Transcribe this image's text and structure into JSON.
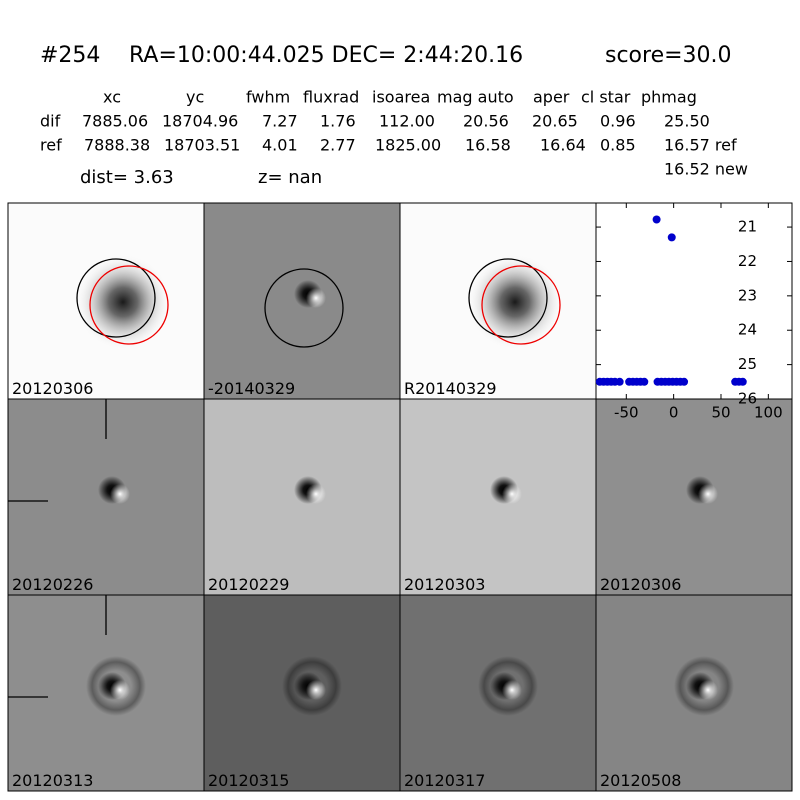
{
  "header": {
    "id": "#254",
    "coords": "RA=10:00:44.025 DEC= 2:44:20.16",
    "score": "score=30.0"
  },
  "table": {
    "columns": [
      "xc",
      "yc",
      "fwhm",
      "fluxrad",
      "isoarea",
      "mag auto",
      "aper",
      "cl star",
      "phmag"
    ],
    "rows": [
      [
        "dif",
        "7885.06",
        "18704.96",
        "7.27",
        "1.76",
        "112.00",
        "20.56",
        "20.65",
        "0.96",
        "25.50"
      ],
      [
        "ref",
        "7888.38",
        "18703.51",
        "4.01",
        "2.77",
        "1825.00",
        "16.58",
        "16.64",
        "0.85",
        "16.57 ref"
      ]
    ],
    "extra": "16.52 new"
  },
  "dist": "dist=  3.63",
  "z": "z=   nan",
  "panels": [
    "20120306",
    "-20140329",
    "R20140329",
    "20120226",
    "20120229",
    "20120303",
    "20120306",
    "20120313",
    "20120315",
    "20120317",
    "20120508"
  ],
  "chart_data": {
    "type": "scatter",
    "color": "#0000cc",
    "x": [
      -18,
      -2,
      -78,
      -74,
      -70,
      -66,
      -62,
      -57,
      -47,
      -43,
      -39,
      -35,
      -31,
      -17,
      -13,
      -9,
      -5,
      -1,
      3,
      7,
      11,
      65,
      69,
      73
    ],
    "values": [
      20.78,
      21.3,
      25.5,
      25.5,
      25.5,
      25.5,
      25.5,
      25.5,
      25.5,
      25.5,
      25.5,
      25.5,
      25.5,
      25.5,
      25.5,
      25.5,
      25.5,
      25.5,
      25.5,
      25.5,
      25.5,
      25.5,
      25.5,
      25.5
    ],
    "xlim": [
      -82,
      125
    ],
    "xticks": [
      -50,
      0,
      50,
      100
    ],
    "ylim": [
      26,
      20.3
    ],
    "yticks": [
      21,
      22,
      23,
      24,
      25,
      26
    ]
  }
}
